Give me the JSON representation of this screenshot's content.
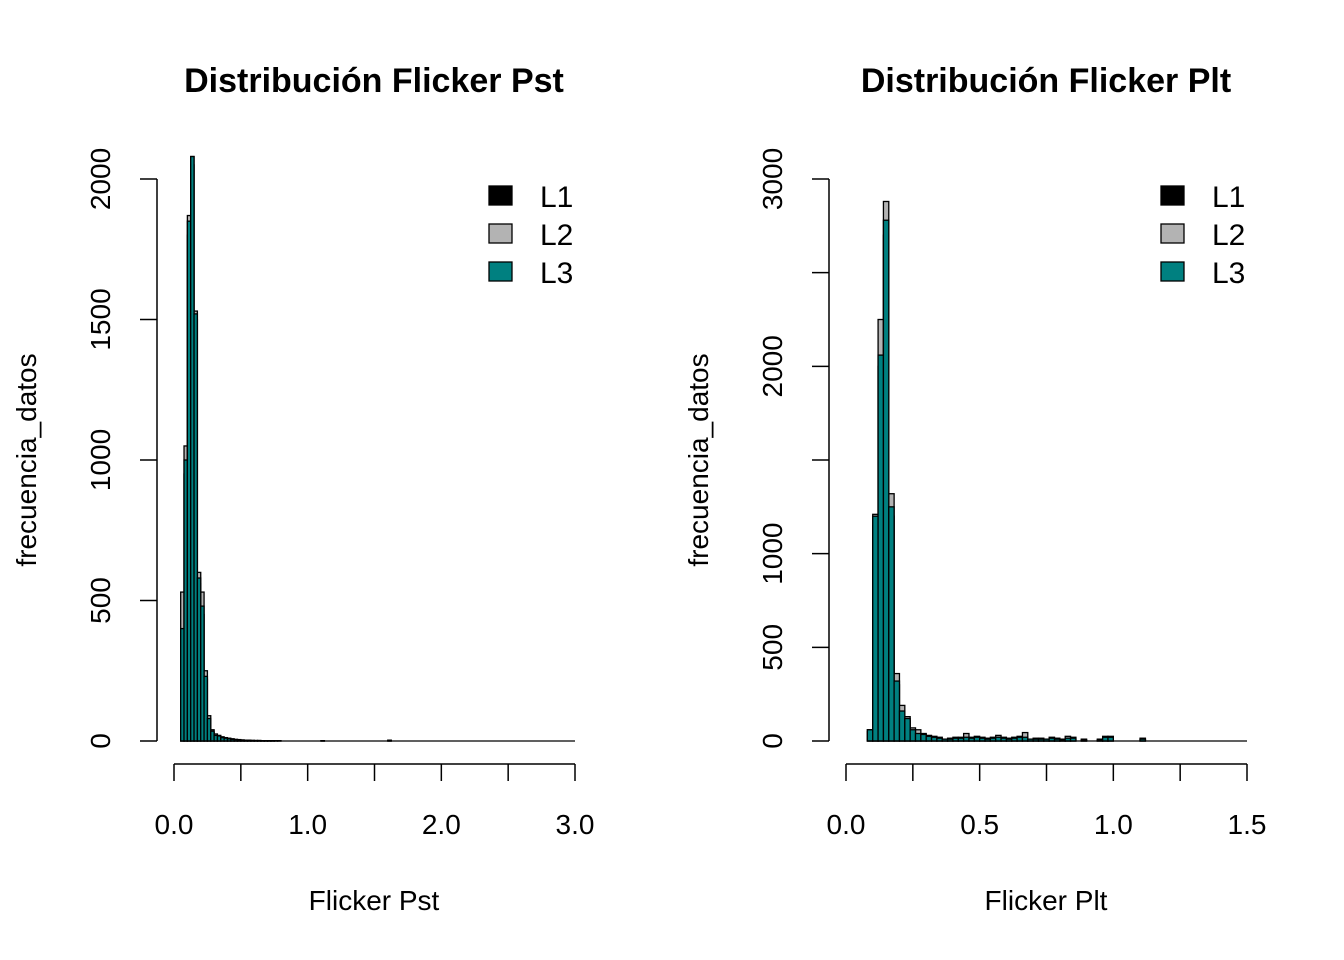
{
  "colors": {
    "L1": "#000000",
    "L2": "#b3b3b3",
    "L3": "#008080"
  },
  "chart_data": [
    {
      "type": "bar",
      "title": "Distribución Flicker Pst",
      "xlabel": "Flicker Pst",
      "ylabel": "frecuencia_datos",
      "xlim": [
        0,
        3
      ],
      "ylim": [
        0,
        2000
      ],
      "x_ticks": [
        0,
        0.5,
        1,
        1.5,
        2,
        2.5,
        3
      ],
      "x_tick_labels": [
        "0.0",
        "",
        "1.0",
        "",
        "2.0",
        "",
        "3.0"
      ],
      "y_ticks": [
        0,
        500,
        1000,
        1500,
        2000
      ],
      "y_tick_labels": [
        "0",
        "500",
        "1000",
        "1500",
        "2000"
      ],
      "legend": {
        "position": "top-right",
        "entries": [
          "L1",
          "L2",
          "L3"
        ]
      },
      "bin_start": 0.05,
      "bin_width": 0.025,
      "series": [
        {
          "name": "L1",
          "values": [
            300,
            950,
            1800,
            2050,
            1500,
            560,
            450,
            220,
            75,
            30,
            18,
            15,
            10,
            9,
            7,
            5,
            4,
            3,
            2,
            2,
            2,
            1,
            1,
            1,
            1,
            1,
            1,
            1,
            0,
            0
          ]
        },
        {
          "name": "L2",
          "values": [
            530,
            1050,
            1870,
            2080,
            1530,
            600,
            530,
            250,
            90,
            40,
            25,
            20,
            15,
            12,
            10,
            8,
            6,
            5,
            4,
            3,
            3,
            2,
            2,
            2,
            1,
            1,
            1,
            1,
            1,
            1
          ]
        },
        {
          "name": "L3",
          "values": [
            400,
            1000,
            1850,
            2080,
            1520,
            580,
            480,
            230,
            80,
            35,
            20,
            18,
            12,
            10,
            8,
            6,
            5,
            4,
            3,
            2,
            2,
            2,
            1,
            1,
            1,
            1,
            1,
            1,
            1,
            1
          ]
        }
      ],
      "extra_bins": [
        {
          "x": 1.1,
          "L1": 1,
          "L2": 1,
          "L3": 1
        },
        {
          "x": 1.6,
          "L1": 2,
          "L2": 3,
          "L3": 2
        }
      ]
    },
    {
      "type": "bar",
      "title": "Distribución Flicker Plt",
      "xlabel": "Flicker Plt",
      "ylabel": "frecuencia_datos",
      "xlim": [
        0,
        1.5
      ],
      "ylim": [
        0,
        3000
      ],
      "x_ticks": [
        0,
        0.25,
        0.5,
        0.75,
        1,
        1.25,
        1.5
      ],
      "x_tick_labels": [
        "0.0",
        "",
        "0.5",
        "",
        "1.0",
        "",
        "1.5"
      ],
      "y_ticks": [
        0,
        500,
        1000,
        1500,
        2000,
        2500,
        3000
      ],
      "y_tick_labels": [
        "0",
        "500",
        "1000",
        "",
        "2000",
        "",
        "3000"
      ],
      "legend": {
        "position": "top-right",
        "entries": [
          "L1",
          "L2",
          "L3"
        ]
      },
      "bin_start": 0.08,
      "bin_width": 0.02,
      "series": [
        {
          "name": "L1",
          "values": [
            50,
            1150,
            2000,
            2700,
            1200,
            300,
            150,
            110,
            55,
            35,
            30,
            20,
            15,
            10,
            8,
            8,
            10,
            10,
            15,
            10,
            15,
            10,
            8,
            10,
            15,
            10,
            8,
            10,
            15,
            15,
            8,
            8,
            8,
            8,
            10,
            8,
            4,
            10,
            10,
            0,
            4,
            0,
            0,
            4,
            15,
            15,
            0,
            0,
            0,
            0,
            0,
            8
          ]
        },
        {
          "name": "L2",
          "values": [
            60,
            1210,
            2250,
            2880,
            1320,
            360,
            190,
            130,
            70,
            60,
            40,
            30,
            25,
            20,
            10,
            15,
            20,
            20,
            40,
            20,
            25,
            20,
            15,
            20,
            30,
            20,
            15,
            20,
            25,
            45,
            10,
            15,
            15,
            10,
            20,
            15,
            10,
            25,
            20,
            0,
            10,
            0,
            0,
            10,
            25,
            25,
            0,
            0,
            0,
            0,
            0,
            15
          ]
        },
        {
          "name": "L3",
          "values": [
            60,
            1200,
            2060,
            2780,
            1250,
            320,
            160,
            120,
            60,
            40,
            35,
            25,
            20,
            15,
            10,
            10,
            15,
            15,
            20,
            15,
            20,
            15,
            10,
            15,
            20,
            15,
            10,
            15,
            20,
            20,
            10,
            10,
            10,
            10,
            15,
            10,
            5,
            15,
            15,
            0,
            5,
            0,
            0,
            5,
            20,
            20,
            0,
            0,
            0,
            0,
            0,
            10
          ]
        }
      ],
      "extra_bins": []
    }
  ]
}
